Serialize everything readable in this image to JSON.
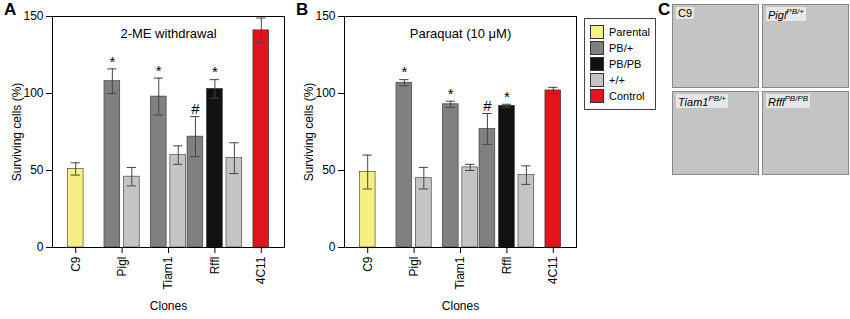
{
  "chart_data": [
    {
      "type": "bar",
      "panel": "A",
      "title": "2-ME withdrawal",
      "x_label": "Clones",
      "y_label": "Surviving cells (%)",
      "categories": [
        "C9",
        "Pigl",
        "Tiam1",
        "Rffl",
        "4C11"
      ],
      "series": [
        {
          "name": "Parental",
          "color": "#f6ef83",
          "values": [
            51,
            null,
            null,
            null,
            null
          ],
          "errors": [
            4,
            null,
            null,
            null,
            null
          ]
        },
        {
          "name": "PB/+",
          "color": "#808080",
          "values": [
            null,
            108,
            98,
            72,
            null
          ],
          "errors": [
            null,
            8,
            12,
            13,
            null
          ]
        },
        {
          "name": "PB/PB",
          "color": "#111111",
          "values": [
            null,
            null,
            null,
            103,
            null
          ],
          "errors": [
            null,
            null,
            null,
            6,
            null
          ]
        },
        {
          "name": "+/+",
          "color": "#c4c4c4",
          "values": [
            null,
            46,
            60,
            58,
            null
          ],
          "errors": [
            null,
            6,
            6,
            10,
            null
          ]
        },
        {
          "name": "Control",
          "color": "#e3141b",
          "values": [
            null,
            null,
            null,
            null,
            141
          ],
          "errors": [
            null,
            null,
            null,
            null,
            8
          ]
        }
      ],
      "annotations": [
        {
          "category": "Pigl",
          "series": "PB/+",
          "text": "*"
        },
        {
          "category": "Tiam1",
          "series": "PB/+",
          "text": "*"
        },
        {
          "category": "Rffl",
          "series": "PB/+",
          "text": "#"
        },
        {
          "category": "Rffl",
          "series": "PB/PB",
          "text": "*"
        }
      ],
      "ylim": [
        0,
        150
      ],
      "yticks": [
        0,
        50,
        100,
        150
      ]
    },
    {
      "type": "bar",
      "panel": "B",
      "title": "Paraquat (10 μM)",
      "x_label": "Clones",
      "y_label": "Surviving cells (%)",
      "categories": [
        "C9",
        "Pigl",
        "Tiam1",
        "Rffl",
        "4C11"
      ],
      "series": [
        {
          "name": "Parental",
          "color": "#f6ef83",
          "values": [
            49,
            null,
            null,
            null,
            null
          ],
          "errors": [
            11,
            null,
            null,
            null,
            null
          ]
        },
        {
          "name": "PB/+",
          "color": "#808080",
          "values": [
            null,
            107,
            93,
            77,
            null
          ],
          "errors": [
            null,
            2,
            2,
            10,
            null
          ]
        },
        {
          "name": "PB/PB",
          "color": "#111111",
          "values": [
            null,
            null,
            null,
            92,
            null
          ],
          "errors": [
            null,
            null,
            null,
            1,
            null
          ]
        },
        {
          "name": "+/+",
          "color": "#c4c4c4",
          "values": [
            null,
            45,
            52,
            47,
            null
          ],
          "errors": [
            null,
            7,
            2,
            6,
            null
          ]
        },
        {
          "name": "Control",
          "color": "#e3141b",
          "values": [
            null,
            null,
            null,
            null,
            102
          ],
          "errors": [
            null,
            null,
            null,
            null,
            2
          ]
        }
      ],
      "annotations": [
        {
          "category": "Pigl",
          "series": "PB/+",
          "text": "*"
        },
        {
          "category": "Tiam1",
          "series": "PB/+",
          "text": "*"
        },
        {
          "category": "Rffl",
          "series": "PB/+",
          "text": "#"
        },
        {
          "category": "Rffl",
          "series": "PB/PB",
          "text": "*"
        }
      ],
      "ylim": [
        0,
        150
      ],
      "yticks": [
        0,
        50,
        100,
        150
      ],
      "legend": "right"
    }
  ],
  "panel_c": {
    "panel": "C",
    "images": [
      {
        "name": "C9"
      },
      {
        "name": "Pigl",
        "superscript": "PB/+"
      },
      {
        "name": "Tiam1",
        "superscript": "PB/+"
      },
      {
        "name": "Rffl",
        "superscript": "PB/PB"
      }
    ]
  }
}
